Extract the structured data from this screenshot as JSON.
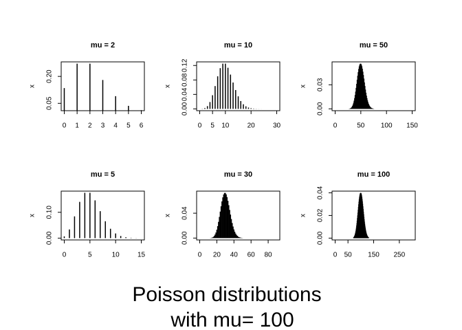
{
  "figure_title": {
    "lines": [
      "Poisson distributions",
      "with mu=  100"
    ]
  },
  "chart_data": [
    {
      "type": "spike",
      "title": "mu =  2",
      "y_label": "x",
      "x": [
        0,
        1,
        2,
        3,
        4,
        5,
        6
      ],
      "values": [
        0.135,
        0.271,
        0.271,
        0.18,
        0.09,
        0.036,
        0.012
      ],
      "xlim": [
        -0.24,
        6.24
      ],
      "xticks": [
        0,
        1,
        2,
        3,
        4,
        5,
        6
      ],
      "ylim": [
        0.009,
        0.281
      ],
      "yticks": [
        0.05,
        {
          "value": 0.2,
          "label": "0.20"
        }
      ],
      "color": "#000000"
    },
    {
      "type": "spike",
      "title": "mu =  10",
      "y_label": "x",
      "x": [
        0,
        1,
        2,
        3,
        4,
        5,
        6,
        7,
        8,
        9,
        10,
        11,
        12,
        13,
        14,
        15,
        16,
        17,
        18,
        19,
        20,
        21,
        22,
        23,
        24,
        25,
        26,
        27,
        28,
        29,
        30
      ],
      "values": [
        0,
        0.0005,
        0.0023,
        0.0076,
        0.0189,
        0.0378,
        0.0631,
        0.0901,
        0.1126,
        0.1251,
        0.1251,
        0.1137,
        0.0948,
        0.0729,
        0.0521,
        0.0347,
        0.0217,
        0.0128,
        0.0071,
        0.0037,
        0.0019,
        0.0009,
        0.0004,
        0.0002,
        0.0001,
        0,
        0,
        0,
        0,
        0,
        0
      ],
      "xlim": [
        -1.2,
        31.2
      ],
      "xticks": [
        0,
        5,
        10,
        20,
        30
      ],
      "ylim": [
        -0.005,
        0.13
      ],
      "yticks": [
        {
          "value": 0,
          "label": "0.00"
        },
        0.04,
        0.08,
        0.12
      ],
      "color": "#000000"
    },
    {
      "type": "spike",
      "title": "mu =  50",
      "y_label": "x",
      "x": [
        27,
        28,
        29,
        30,
        31,
        32,
        33,
        34,
        35,
        36,
        37,
        38,
        39,
        40,
        41,
        42,
        43,
        44,
        45,
        46,
        47,
        48,
        49,
        50,
        51,
        52,
        53,
        54,
        55,
        56,
        57,
        58,
        59,
        60,
        61,
        62,
        63,
        64,
        65,
        66,
        67,
        68,
        69,
        70,
        71,
        72,
        73,
        74,
        75
      ],
      "values": [
        0.0001,
        0.0002,
        0.0004,
        0.0007,
        0.0011,
        0.0017,
        0.0026,
        0.0038,
        0.0054,
        0.0076,
        0.0102,
        0.0134,
        0.0172,
        0.0215,
        0.0262,
        0.0312,
        0.0363,
        0.0413,
        0.0458,
        0.0498,
        0.053,
        0.0552,
        0.0563,
        0.0563,
        0.0552,
        0.0531,
        0.0501,
        0.0464,
        0.0422,
        0.0377,
        0.033,
        0.0285,
        0.0241,
        0.0201,
        0.0165,
        0.0133,
        0.0106,
        0.0082,
        0.0063,
        0.0048,
        0.0036,
        0.0026,
        0.0019,
        0.0014,
        0.001,
        0.0007,
        0.0005,
        0.0003,
        0.0002
      ],
      "xlim": [
        -6,
        156
      ],
      "xticks": [
        0,
        50,
        100,
        150
      ],
      "ylim": [
        -0.0023,
        0.0586
      ],
      "yticks": [
        {
          "value": 0,
          "label": "0.00"
        },
        0.03
      ],
      "color": "#000000"
    },
    {
      "type": "spike",
      "title": "mu =  5",
      "y_label": "x",
      "x": [
        0,
        1,
        2,
        3,
        4,
        5,
        6,
        7,
        8,
        9,
        10,
        11,
        12,
        13,
        14,
        15
      ],
      "values": [
        0.0067,
        0.0337,
        0.0842,
        0.1404,
        0.1755,
        0.1755,
        0.1462,
        0.1044,
        0.0653,
        0.0363,
        0.0181,
        0.0082,
        0.0034,
        0.0013,
        0.0005,
        0.0002
      ],
      "xlim": [
        -0.6,
        15.6
      ],
      "xticks": [
        0,
        5,
        10,
        15
      ],
      "ylim": [
        -0.007,
        0.182
      ],
      "yticks": [
        {
          "value": 0,
          "label": "0.00"
        },
        {
          "value": 0.1,
          "label": "0.10"
        }
      ],
      "color": "#000000"
    },
    {
      "type": "spike",
      "title": "mu =  30",
      "y_label": "x",
      "x": [
        12,
        13,
        14,
        15,
        16,
        17,
        18,
        19,
        20,
        21,
        22,
        23,
        24,
        25,
        26,
        27,
        28,
        29,
        30,
        31,
        32,
        33,
        34,
        35,
        36,
        37,
        38,
        39,
        40,
        41,
        42,
        43,
        44,
        45,
        46,
        47,
        48,
        49,
        50
      ],
      "values": [
        0.0001,
        0.0002,
        0.0005,
        0.001,
        0.0019,
        0.0034,
        0.0057,
        0.0089,
        0.0134,
        0.0192,
        0.0261,
        0.0341,
        0.0426,
        0.0511,
        0.059,
        0.0655,
        0.0702,
        0.0726,
        0.0726,
        0.0703,
        0.0659,
        0.0599,
        0.0529,
        0.0453,
        0.0378,
        0.0306,
        0.0242,
        0.0186,
        0.0139,
        0.0102,
        0.0073,
        0.0051,
        0.0035,
        0.0023,
        0.0015,
        0.001,
        0.0006,
        0.0004,
        0.0002
      ],
      "xlim": [
        -3.6,
        93.6
      ],
      "xticks": [
        0,
        20,
        40,
        60,
        80
      ],
      "ylim": [
        -0.003,
        0.0755
      ],
      "yticks": [
        {
          "value": 0,
          "label": "0.00"
        },
        0.04
      ],
      "color": "#000000"
    },
    {
      "type": "spike",
      "title": "mu =  100",
      "y_label": "x",
      "x": [
        72,
        73,
        74,
        75,
        76,
        77,
        78,
        79,
        80,
        81,
        82,
        83,
        84,
        85,
        86,
        87,
        88,
        89,
        90,
        91,
        92,
        93,
        94,
        95,
        96,
        97,
        98,
        99,
        100,
        101,
        102,
        103,
        104,
        105,
        106,
        107,
        108,
        109,
        110,
        111,
        112,
        113,
        114,
        115,
        116,
        117,
        118,
        119,
        120,
        121,
        122,
        123,
        124,
        125,
        126,
        127,
        128,
        129,
        130
      ],
      "values": [
        0.0006,
        0.0008,
        0.0011,
        0.0015,
        0.002,
        0.0026,
        0.0033,
        0.0042,
        0.0052,
        0.0064,
        0.0078,
        0.0094,
        0.0112,
        0.0132,
        0.0154,
        0.0177,
        0.0201,
        0.0225,
        0.025,
        0.0275,
        0.0299,
        0.0322,
        0.0342,
        0.036,
        0.0375,
        0.0387,
        0.0395,
        0.0399,
        0.0399,
        0.0395,
        0.0387,
        0.0376,
        0.0361,
        0.0344,
        0.0325,
        0.0303,
        0.0281,
        0.0258,
        0.0234,
        0.0211,
        0.0188,
        0.0167,
        0.0146,
        0.0127,
        0.011,
        0.0094,
        0.0079,
        0.0067,
        0.0056,
        0.0046,
        0.0038,
        0.0031,
        0.0025,
        0.002,
        0.0016,
        0.0012,
        0.001,
        0.0008,
        0.0006
      ],
      "xlim": [
        -12,
        312
      ],
      "xticks": [
        0,
        50,
        150,
        250
      ],
      "ylim": [
        -0.0016,
        0.0415
      ],
      "yticks": [
        {
          "value": 0,
          "label": "0.00"
        },
        0.02,
        0.04
      ],
      "color": "#000000"
    }
  ]
}
